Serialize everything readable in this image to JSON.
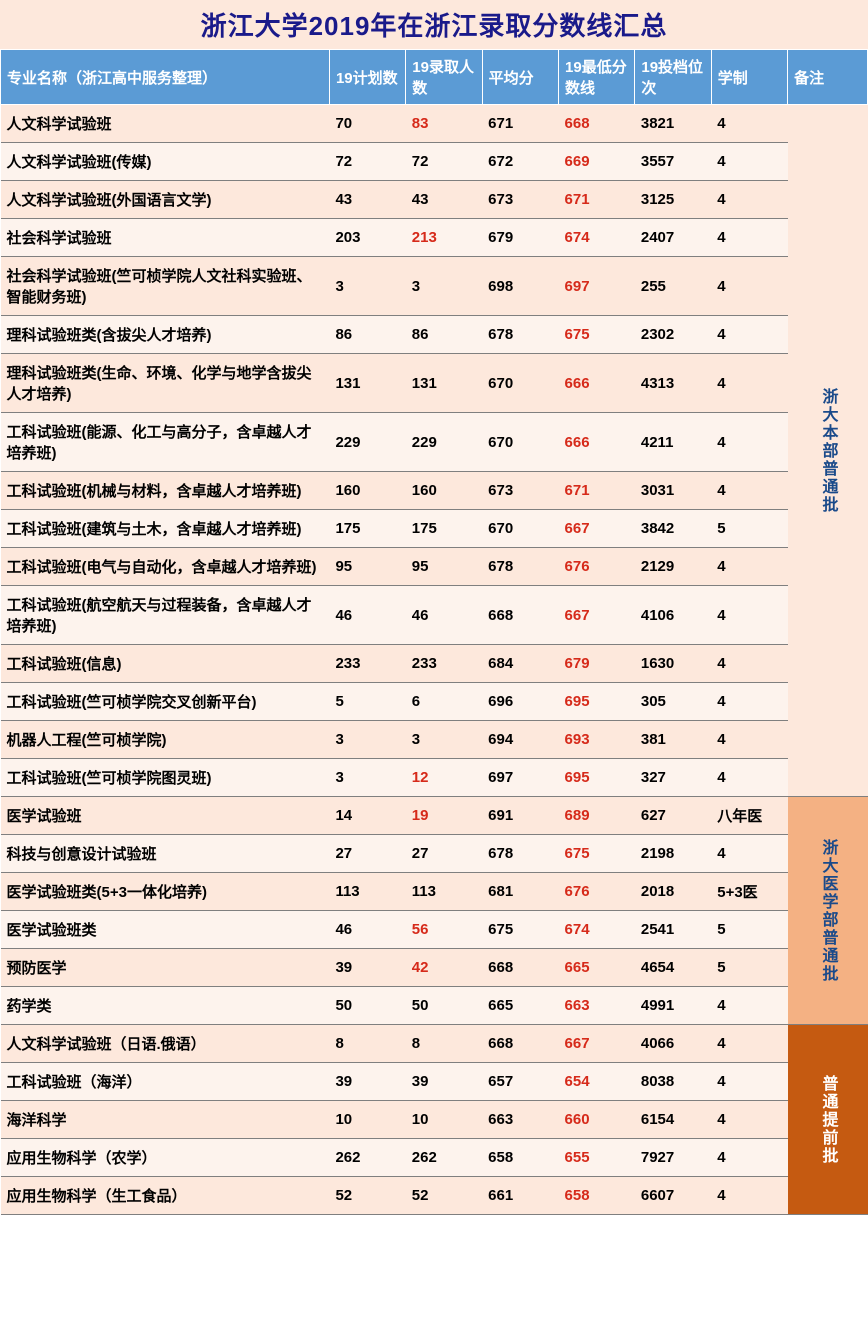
{
  "title": "浙江大学2019年在浙江录取分数线汇总",
  "headers": {
    "major": "专业名称（浙江高中服务整理）",
    "plan": "19计划数",
    "admit": "19录取人数",
    "avg": "平均分",
    "min": "19最低分数线",
    "rank": "19投档位次",
    "years": "学制",
    "remark": "备注"
  },
  "groups": [
    {
      "remark": "浙大本部普通批",
      "remark_class": "remark-a",
      "rows": [
        {
          "major": "人文科学试验班",
          "plan": "70",
          "admit": "83",
          "admit_red": true,
          "avg": "671",
          "min": "668",
          "rank": "3821",
          "years": "4"
        },
        {
          "major": "人文科学试验班(传媒)",
          "plan": "72",
          "admit": "72",
          "avg": "672",
          "min": "669",
          "rank": "3557",
          "years": "4"
        },
        {
          "major": "人文科学试验班(外国语言文学)",
          "plan": "43",
          "admit": "43",
          "avg": "673",
          "min": "671",
          "rank": "3125",
          "years": "4"
        },
        {
          "major": "社会科学试验班",
          "plan": "203",
          "admit": "213",
          "admit_red": true,
          "avg": "679",
          "min": "674",
          "rank": "2407",
          "years": "4"
        },
        {
          "major": "社会科学试验班(竺可桢学院人文社科实验班、智能财务班)",
          "plan": "3",
          "admit": "3",
          "avg": "698",
          "min": "697",
          "rank": "255",
          "years": "4"
        },
        {
          "major": "理科试验班类(含拔尖人才培养)",
          "plan": "86",
          "admit": "86",
          "avg": "678",
          "min": "675",
          "rank": "2302",
          "years": "4"
        },
        {
          "major": "理科试验班类(生命、环境、化学与地学含拔尖人才培养)",
          "plan": "131",
          "admit": "131",
          "avg": "670",
          "min": "666",
          "rank": "4313",
          "years": "4"
        },
        {
          "major": "工科试验班(能源、化工与高分子，含卓越人才培养班)",
          "plan": "229",
          "admit": "229",
          "avg": "670",
          "min": "666",
          "rank": "4211",
          "years": "4"
        },
        {
          "major": "工科试验班(机械与材料，含卓越人才培养班)",
          "plan": "160",
          "admit": "160",
          "avg": "673",
          "min": "671",
          "rank": "3031",
          "years": "4"
        },
        {
          "major": "工科试验班(建筑与土木，含卓越人才培养班)",
          "plan": "175",
          "admit": "175",
          "avg": "670",
          "min": "667",
          "rank": "3842",
          "years": "5"
        },
        {
          "major": "工科试验班(电气与自动化，含卓越人才培养班)",
          "plan": "95",
          "admit": "95",
          "avg": "678",
          "min": "676",
          "rank": "2129",
          "years": "4"
        },
        {
          "major": "工科试验班(航空航天与过程装备，含卓越人才培养班)",
          "plan": "46",
          "admit": "46",
          "avg": "668",
          "min": "667",
          "rank": "4106",
          "years": "4"
        },
        {
          "major": "工科试验班(信息)",
          "plan": "233",
          "admit": "233",
          "avg": "684",
          "min": "679",
          "rank": "1630",
          "years": "4"
        },
        {
          "major": "工科试验班(竺可桢学院交叉创新平台)",
          "plan": "5",
          "admit": "6",
          "avg": "696",
          "min": "695",
          "rank": "305",
          "years": "4"
        },
        {
          "major": "机器人工程(竺可桢学院)",
          "plan": "3",
          "admit": "3",
          "avg": "694",
          "min": "693",
          "rank": "381",
          "years": "4"
        },
        {
          "major": "工科试验班(竺可桢学院图灵班)",
          "plan": "3",
          "admit": "12",
          "admit_red": true,
          "avg": "697",
          "min": "695",
          "rank": "327",
          "years": "4"
        }
      ]
    },
    {
      "remark": "浙大医学部普通批",
      "remark_class": "remark-b",
      "rows": [
        {
          "major": "医学试验班",
          "plan": "14",
          "admit": "19",
          "admit_red": true,
          "avg": "691",
          "min": "689",
          "rank": "627",
          "years": "八年医"
        },
        {
          "major": "科技与创意设计试验班",
          "plan": "27",
          "admit": "27",
          "avg": "678",
          "min": "675",
          "rank": "2198",
          "years": "4"
        },
        {
          "major": "医学试验班类(5+3一体化培养)",
          "plan": "113",
          "admit": "113",
          "avg": "681",
          "min": "676",
          "rank": "2018",
          "years": "5+3医"
        },
        {
          "major": "医学试验班类",
          "plan": "46",
          "admit": "56",
          "admit_red": true,
          "avg": "675",
          "min": "674",
          "rank": "2541",
          "years": "5"
        },
        {
          "major": "预防医学",
          "plan": "39",
          "admit": "42",
          "admit_red": true,
          "avg": "668",
          "min": "665",
          "rank": "4654",
          "years": "5"
        },
        {
          "major": "药学类",
          "plan": "50",
          "admit": "50",
          "avg": "665",
          "min": "663",
          "rank": "4991",
          "years": "4"
        }
      ]
    },
    {
      "remark": "普通提前批",
      "remark_class": "remark-c",
      "rows": [
        {
          "major": "人文科学试验班（日语.俄语）",
          "plan": "8",
          "admit": "8",
          "avg": "668",
          "min": "667",
          "rank": "4066",
          "years": "4"
        },
        {
          "major": "工科试验班（海洋）",
          "plan": "39",
          "admit": "39",
          "avg": "657",
          "min": "654",
          "rank": "8038",
          "years": "4"
        },
        {
          "major": "海洋科学",
          "plan": "10",
          "admit": "10",
          "avg": "663",
          "min": "660",
          "rank": "6154",
          "years": "4"
        },
        {
          "major": "应用生物科学（农学）",
          "plan": "262",
          "admit": "262",
          "avg": "658",
          "min": "655",
          "rank": "7927",
          "years": "4"
        },
        {
          "major": "应用生物科学（生工食品）",
          "plan": "52",
          "admit": "52",
          "avg": "661",
          "min": "658",
          "rank": "6607",
          "years": "4"
        }
      ]
    }
  ],
  "colors": {
    "header_bg": "#5b9bd5",
    "row_even": "#fde8dc",
    "row_odd": "#fdf3ed",
    "red_text": "#d62a1a",
    "title_color": "#1a1a8a"
  }
}
